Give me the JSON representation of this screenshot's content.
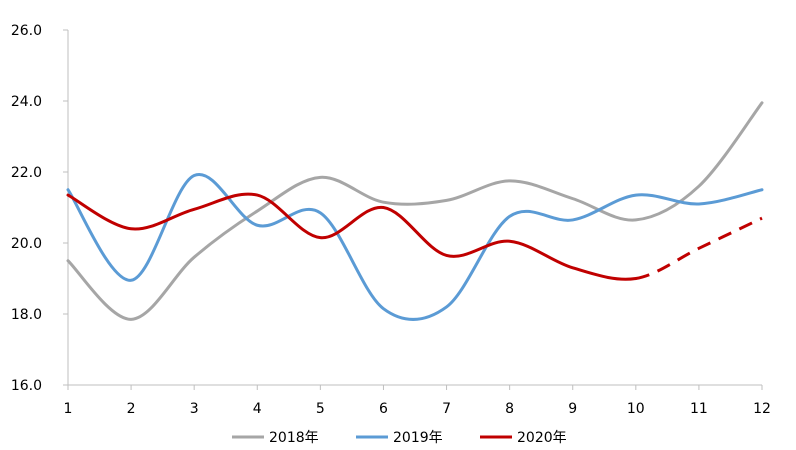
{
  "chart_data": {
    "type": "line",
    "title": "",
    "xlabel": "",
    "ylabel": "",
    "categories": [
      "1",
      "2",
      "3",
      "4",
      "5",
      "6",
      "7",
      "8",
      "9",
      "10",
      "11",
      "12"
    ],
    "x": [
      1,
      2,
      3,
      4,
      5,
      6,
      7,
      8,
      9,
      10,
      11,
      12
    ],
    "ylim": [
      16.0,
      26.0
    ],
    "yticks": [
      "16.0",
      "18.0",
      "20.0",
      "22.0",
      "24.0",
      "26.0"
    ],
    "grid": false,
    "legend_position": "bottom",
    "smooth": true,
    "series": [
      {
        "name": "2018年",
        "color": "#a6a6a6",
        "values": [
          19.5,
          17.85,
          19.6,
          20.9,
          21.85,
          21.15,
          21.2,
          21.75,
          21.25,
          20.65,
          21.6,
          23.95
        ]
      },
      {
        "name": "2019年",
        "color": "#5b9bd5",
        "values": [
          21.5,
          18.95,
          21.9,
          20.5,
          20.85,
          18.15,
          18.2,
          20.75,
          20.65,
          21.35,
          21.1,
          21.5
        ]
      },
      {
        "name": "2020年",
        "color": "#c00000",
        "values": [
          21.35,
          20.4,
          20.95,
          21.35,
          20.15,
          21.0,
          19.65,
          20.05,
          19.3,
          19.0,
          19.85,
          20.7
        ],
        "dashed_from_index": 9
      }
    ]
  }
}
